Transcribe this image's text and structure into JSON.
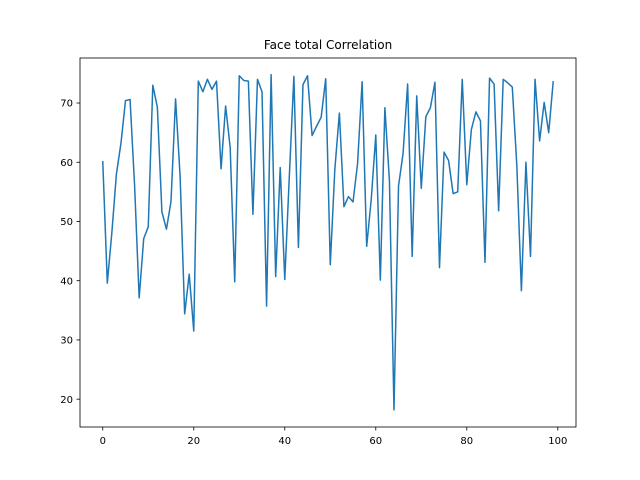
{
  "chart_data": {
    "type": "line",
    "title": "Face total Correlation",
    "xlabel": "",
    "ylabel": "",
    "xlim": [
      -5,
      104
    ],
    "ylim": [
      15.3,
      77.6
    ],
    "xticks": [
      0,
      20,
      40,
      60,
      80,
      100
    ],
    "yticks": [
      20,
      30,
      40,
      50,
      60,
      70
    ],
    "grid": false,
    "series": [
      {
        "color": "#1f77b4",
        "x": [
          0,
          1,
          2,
          3,
          4,
          5,
          6,
          7,
          8,
          9,
          10,
          11,
          12,
          13,
          14,
          15,
          16,
          17,
          18,
          19,
          20,
          21,
          22,
          23,
          24,
          25,
          26,
          27,
          28,
          29,
          30,
          31,
          32,
          33,
          34,
          35,
          36,
          37,
          38,
          39,
          40,
          41,
          42,
          43,
          44,
          45,
          46,
          47,
          48,
          49,
          50,
          51,
          52,
          53,
          54,
          55,
          56,
          57,
          58,
          59,
          60,
          61,
          62,
          63,
          64,
          65,
          66,
          67,
          68,
          69,
          70,
          71,
          72,
          73,
          74,
          75,
          76,
          77,
          78,
          79,
          80,
          81,
          82,
          83,
          84,
          85,
          86,
          87,
          88,
          89,
          90,
          91,
          92,
          93,
          94,
          95,
          96,
          97,
          98,
          99
        ],
        "values": [
          60.2,
          39.6,
          48.1,
          58.0,
          63.2,
          70.4,
          70.6,
          56.0,
          37.1,
          47.1,
          49.1,
          73.0,
          69.3,
          51.6,
          48.7,
          53.4,
          70.7,
          57.6,
          34.4,
          41.1,
          31.5,
          73.7,
          71.9,
          74.0,
          72.3,
          73.7,
          58.9,
          69.5,
          62.5,
          39.8,
          74.6,
          73.8,
          73.7,
          51.2,
          74.0,
          71.9,
          35.7,
          74.8,
          40.7,
          59.1,
          40.2,
          57.6,
          74.5,
          45.6,
          73.1,
          74.6,
          64.5,
          66.1,
          67.6,
          74.1,
          42.7,
          58.8,
          68.3,
          52.5,
          54.2,
          53.3,
          59.8,
          73.6,
          45.8,
          53.7,
          64.6,
          40.1,
          69.2,
          56.9,
          18.2,
          56.0,
          61.5,
          73.2,
          44.1,
          71.2,
          55.6,
          67.7,
          69.2,
          73.5,
          42.2,
          61.7,
          60.3,
          54.7,
          55.0,
          74.0,
          56.2,
          65.5,
          68.5,
          67.0,
          43.1,
          74.2,
          73.2,
          51.8,
          74.0,
          73.4,
          72.7,
          59.4,
          38.3,
          60.0,
          44.1,
          74.0,
          63.6,
          70.1,
          65.0,
          73.7
        ]
      }
    ]
  }
}
